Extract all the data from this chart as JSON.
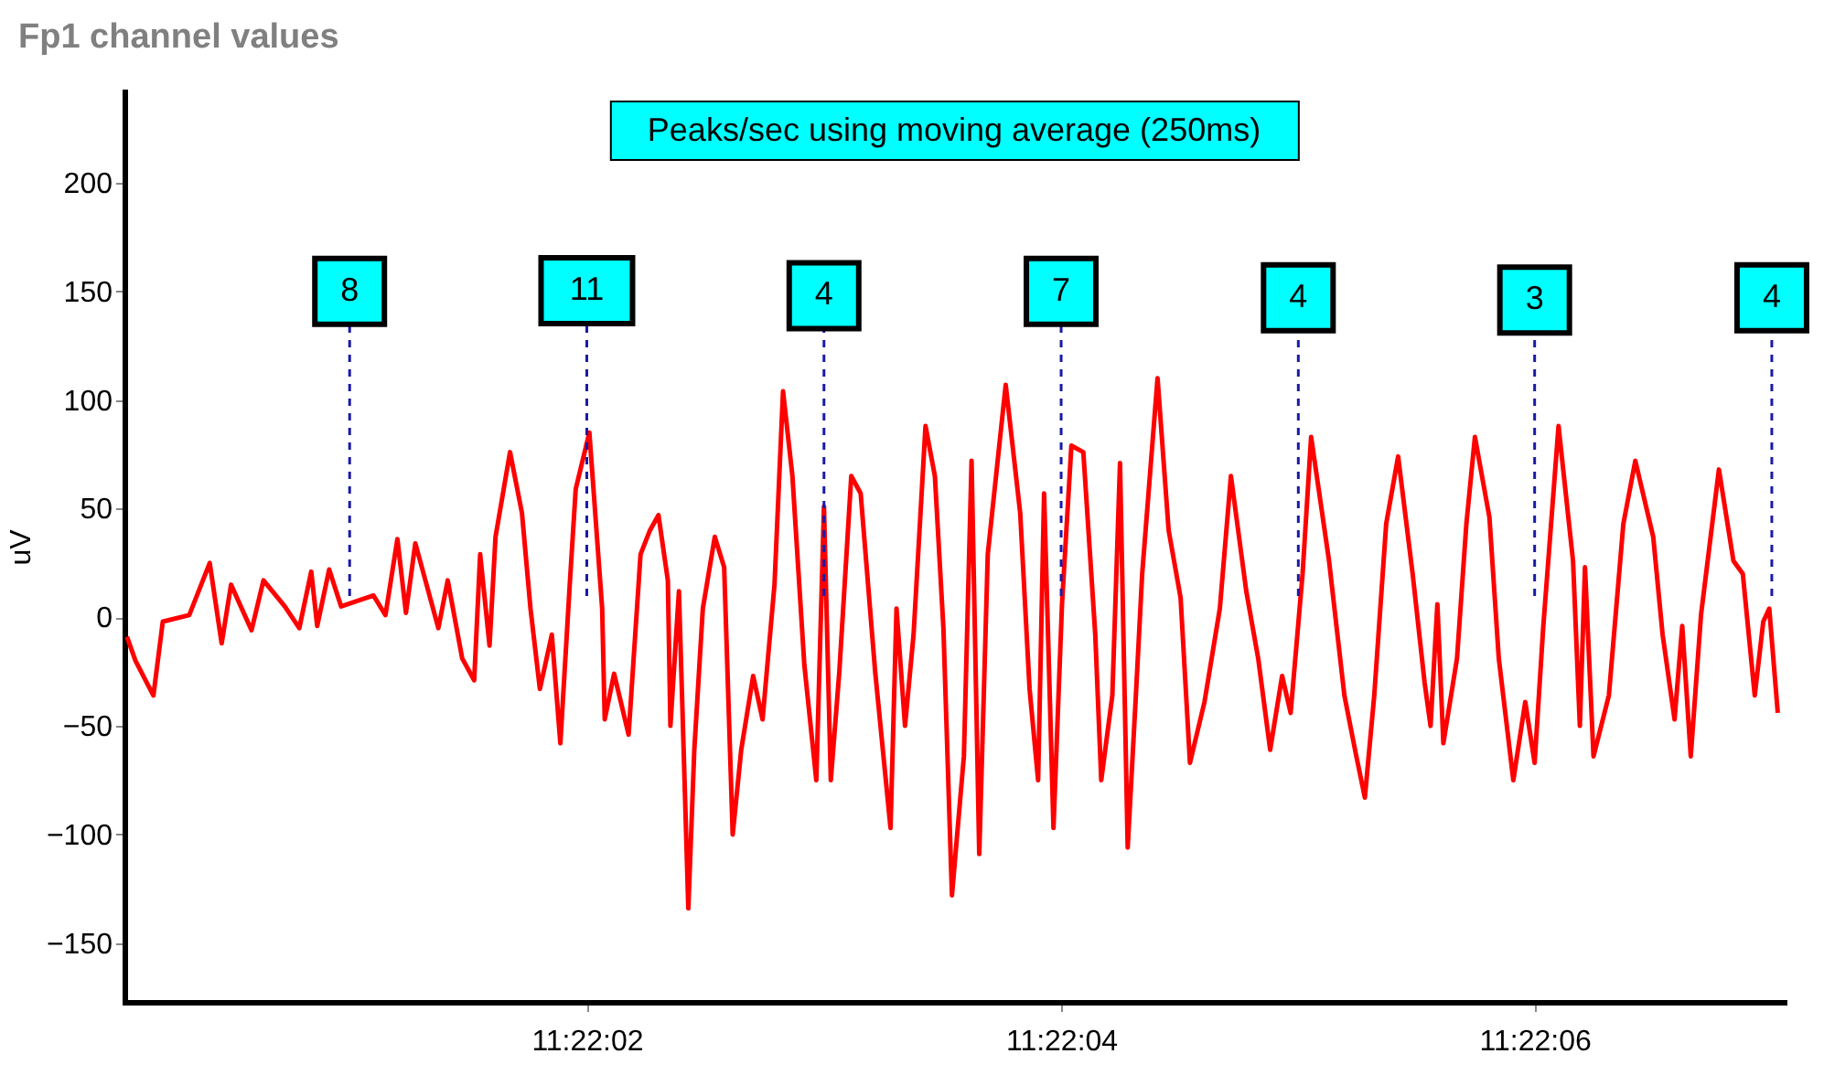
{
  "chart_data": {
    "type": "line",
    "title": "Fp1 channel values",
    "ylabel": "uV",
    "x": [
      11.366683,
      11.366693,
      11.366714,
      11.366725,
      11.366756,
      11.36678,
      11.366794,
      11.366805,
      11.366829,
      11.366843,
      11.366868,
      11.366885,
      11.366899,
      11.366906,
      11.36692,
      11.366934,
      11.366972,
      11.366986,
      11.367,
      11.36701,
      11.367021,
      11.367048,
      11.367059,
      11.367076,
      11.36709,
      11.367097,
      11.367108,
      11.367115,
      11.367132,
      11.367146,
      11.367156,
      11.367167,
      11.367181,
      11.367191,
      11.367202,
      11.367209,
      11.367225,
      11.36724,
      11.367243,
      11.367254,
      11.367271,
      11.367285,
      11.367296,
      11.367306,
      11.367317,
      11.36732,
      11.36733,
      11.367341,
      11.367348,
      11.367358,
      11.367372,
      11.367383,
      11.367393,
      11.367403,
      11.367417,
      11.367428,
      11.367442,
      11.367452,
      11.367463,
      11.367477,
      11.367491,
      11.3675,
      11.367508,
      11.367518,
      11.367532,
      11.367543,
      11.36756,
      11.367578,
      11.367585,
      11.367595,
      11.367605,
      11.367619,
      11.36763,
      11.36764,
      11.36765,
      11.367664,
      11.367673,
      11.367682,
      11.367692,
      11.367713,
      11.36773,
      11.367741,
      11.367751,
      11.367758,
      11.367769,
      11.367779,
      11.36779,
      11.367804,
      11.367818,
      11.367825,
      11.367838,
      11.367847,
      11.367856,
      11.367866,
      11.367873,
      11.367891,
      11.367904,
      11.367918,
      11.367929,
      11.367946,
      11.367964,
      11.367977,
      11.367995,
      11.368009,
      11.368023,
      11.368037,
      11.368047,
      11.368061,
      11.368071,
      11.368092,
      11.36811,
      11.368124,
      11.368134,
      11.368145,
      11.368159,
      11.368173,
      11.36819,
      11.368204,
      11.368211,
      11.368219,
      11.368226,
      11.368242,
      11.368253,
      11.368263,
      11.36828,
      11.368291,
      11.368308,
      11.368322,
      11.368333,
      11.368343,
      11.368361,
      11.368378,
      11.368386,
      11.368392,
      11.368402,
      11.36842,
      11.368437,
      11.368451,
      11.368472,
      11.368483,
      11.368497,
      11.368506,
      11.368516,
      11.368528,
      11.368549,
      11.368566,
      11.368577,
      11.368591,
      11.368601,
      11.368608,
      11.368618
    ],
    "series": [
      {
        "color": "#ff0000",
        "values": [
          -9,
          -20,
          -36,
          -2,
          1,
          25,
          -12,
          15,
          -6,
          17,
          5,
          -5,
          21,
          -4,
          22,
          5,
          10,
          1,
          36,
          2,
          34,
          -5,
          17,
          -19,
          -29,
          29,
          -13,
          37,
          76,
          48,
          4,
          -33,
          -8,
          -58,
          15,
          59,
          85,
          4,
          -47,
          -26,
          -54,
          29,
          40,
          47,
          17,
          -50,
          12,
          -134,
          -61,
          4,
          37,
          23,
          -100,
          -61,
          -27,
          -47,
          15,
          104,
          65,
          -22,
          -75,
          51,
          -75,
          -25,
          65,
          57,
          -25,
          -97,
          4,
          -50,
          -8,
          88,
          65,
          -5,
          -128,
          -64,
          72,
          -109,
          29,
          107,
          48,
          -33,
          -75,
          57,
          -97,
          6,
          79,
          76,
          -8,
          -75,
          -36,
          71,
          -106,
          -33,
          20,
          110,
          40,
          9,
          -67,
          -39,
          4,
          65,
          12,
          -19,
          -61,
          -27,
          -44,
          20,
          83,
          26,
          -36,
          -64,
          -83,
          -36,
          43,
          74,
          20,
          -30,
          -50,
          6,
          -58,
          -19,
          43,
          83,
          46,
          -19,
          -75,
          -39,
          -67,
          -5,
          88,
          26,
          -50,
          23,
          -64,
          -36,
          43,
          72,
          37,
          -8,
          -47,
          -4,
          -64,
          1,
          68,
          26,
          20,
          -36,
          -2,
          4,
          -44
        ]
      }
    ],
    "xlim": [
      11.36668,
      11.368625
    ],
    "xticks": [
      {
        "value": 11.367222,
        "label": "11:22:02"
      },
      {
        "value": 11.367778,
        "label": "11:22:04"
      },
      {
        "value": 11.368333,
        "label": "11:22:06"
      }
    ],
    "ylim": [
      -177,
      242
    ],
    "yticks": [
      -150,
      -100,
      -50,
      0,
      50,
      100,
      150,
      200
    ],
    "annotations": [
      "Peaks/sec using moving average (250ms)",
      {
        "text": "8",
        "x": 11.366944,
        "y": 150
      },
      "11",
      {
        "text": "4",
        "x": 11.3675,
        "y": 148
      },
      {
        "text": "7",
        "x": 11.367778,
        "y": 150
      },
      {
        "text": "4",
        "x": 11.368056,
        "y": 147
      },
      {
        "text": "3",
        "x": 11.368333,
        "y": 146
      },
      {
        "text": "4",
        "x": 11.368611,
        "y": 147
      }
    ],
    "ref_lines": [
      {
        "axis": "x",
        "value": 11.366944,
        "color": "#1a1aa8",
        "line_style": "dashed"
      },
      {
        "axis": "x",
        "value": 11.367222,
        "color": "#1a1aa8",
        "line_style": "dashed"
      },
      {
        "axis": "x",
        "value": 11.3675,
        "color": "#1a1aa8",
        "line_style": "dashed"
      },
      {
        "axis": "x",
        "value": 11.367778,
        "color": "#1a1aa8",
        "line_style": "dashed"
      },
      {
        "axis": "x",
        "value": 11.368056,
        "color": "#1a1aa8",
        "line_style": "dashed"
      },
      {
        "axis": "x",
        "value": 11.368333,
        "color": "#1a1aa8",
        "line_style": "dashed"
      },
      {
        "axis": "x",
        "value": 11.368611,
        "color": "#1a1aa8",
        "line_style": "dashed"
      }
    ]
  }
}
